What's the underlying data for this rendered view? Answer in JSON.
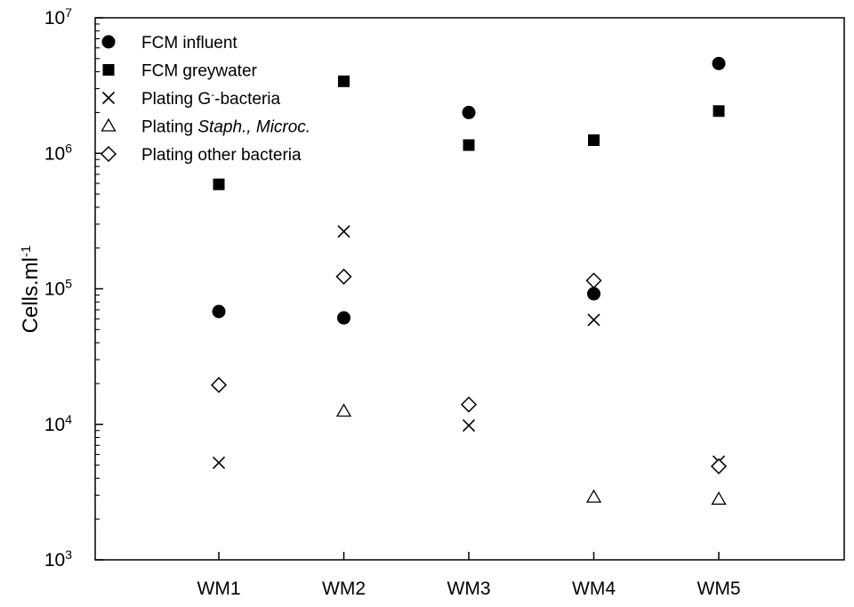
{
  "chart_data": {
    "type": "scatter",
    "ylabel": {
      "main": "Cells.ml",
      "sup": "-1"
    },
    "xlabel": "",
    "yscale": "log",
    "ylim": [
      1000,
      10000000
    ],
    "yticks": [
      {
        "value": 1000,
        "base": "10",
        "exp": "3"
      },
      {
        "value": 10000,
        "base": "10",
        "exp": "4"
      },
      {
        "value": 100000,
        "base": "10",
        "exp": "5"
      },
      {
        "value": 1000000,
        "base": "10",
        "exp": "6"
      },
      {
        "value": 10000000,
        "base": "10",
        "exp": "7"
      }
    ],
    "categories": [
      "WM1",
      "WM2",
      "WM3",
      "WM4",
      "WM5"
    ],
    "legend_position": "top-left",
    "grid": false,
    "series": [
      {
        "name": "FCM influent",
        "marker": "circle",
        "values": [
          68000,
          61000,
          2000000,
          92000,
          4600000
        ]
      },
      {
        "name": "FCM greywater",
        "marker": "square",
        "values": [
          590000,
          3400000,
          1150000,
          1250000,
          2050000
        ]
      },
      {
        "name": "Plating G-bacteria",
        "marker": "x",
        "name_parts": {
          "pre": "Plating G",
          "sup": "-",
          "post": "-bacteria"
        },
        "values": [
          5200,
          265000,
          9800,
          59000,
          5300
        ]
      },
      {
        "name": "Plating Staph., Microc.",
        "marker": "triangle",
        "name_parts": {
          "pre": "Plating ",
          "italic": "Staph., Microc."
        },
        "values": [
          null,
          12500,
          null,
          2900,
          2800
        ]
      },
      {
        "name": "Plating other bacteria",
        "marker": "diamond",
        "values": [
          19500,
          123000,
          14000,
          115000,
          4900
        ]
      }
    ]
  }
}
